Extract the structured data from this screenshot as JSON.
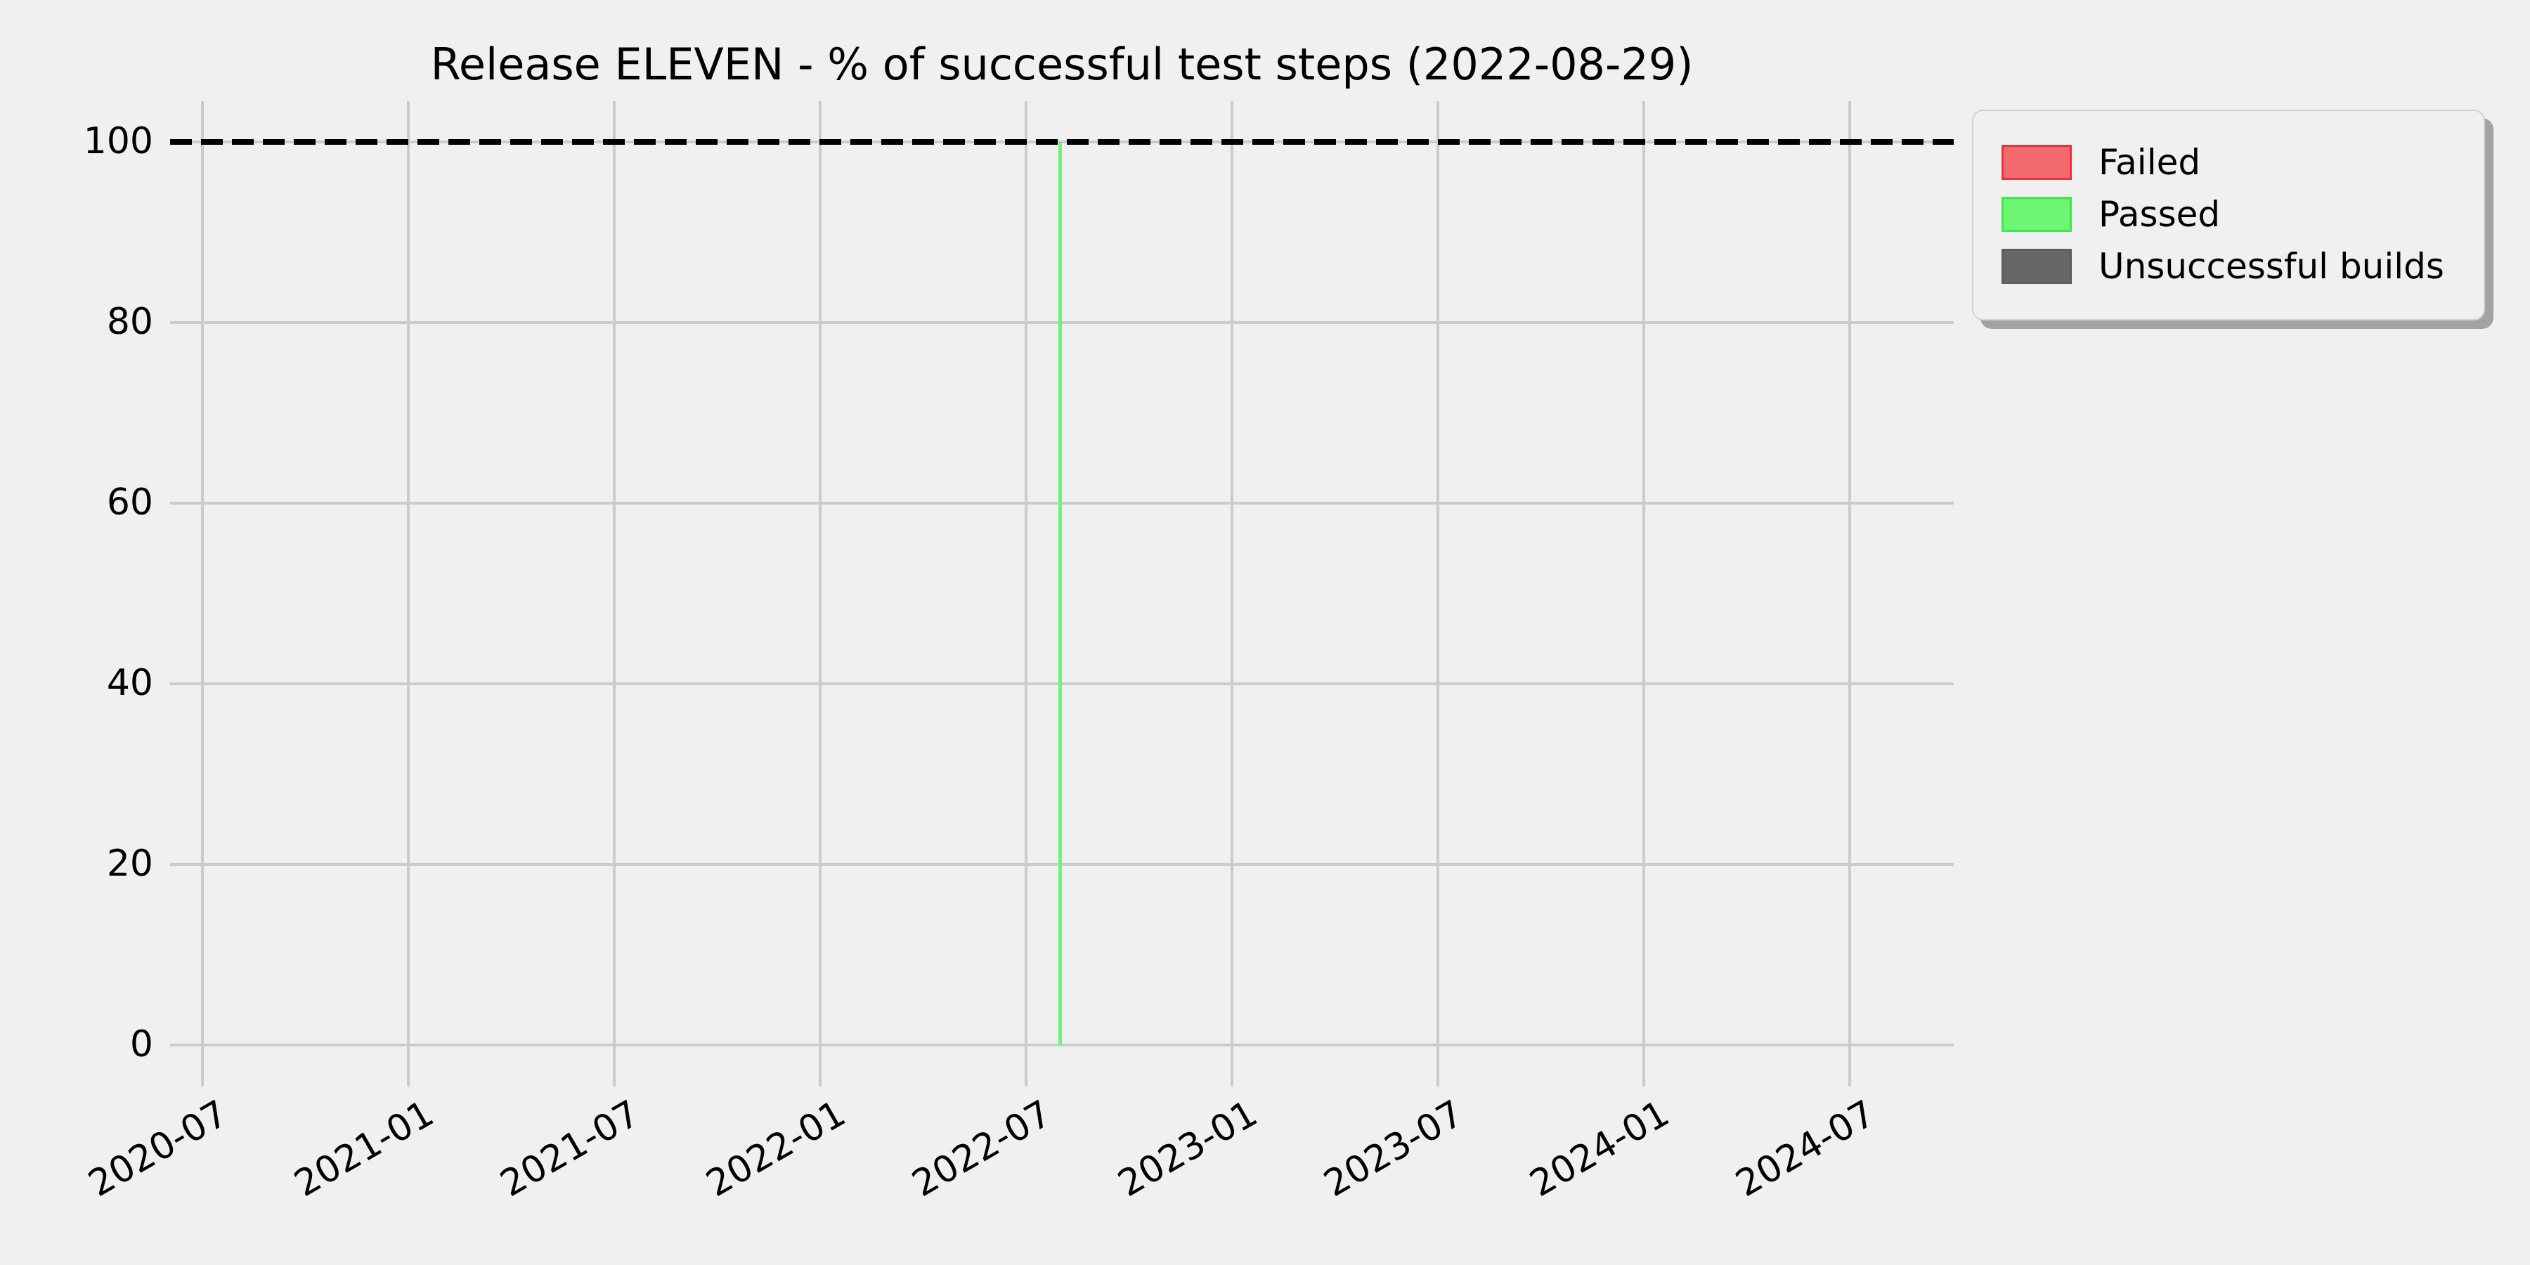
{
  "figure": {
    "background_color": "#f0f0f0",
    "grid_color": "#cbcbcb",
    "text_color": "#000000"
  },
  "chart_data": {
    "type": "bar",
    "title": "Release ELEVEN - % of successful test steps (2022-08-29)",
    "xlabel": "",
    "ylabel": "",
    "x_tick_labels": [
      "2020-07",
      "2021-01",
      "2021-07",
      "2022-01",
      "2022-07",
      "2023-01",
      "2023-07",
      "2024-01",
      "2024-07"
    ],
    "x_tick_rotation_deg": 30,
    "x_start_month": "2020-07",
    "months_per_tick": 6,
    "y_tick_labels": [
      "0",
      "20",
      "40",
      "60",
      "80",
      "100"
    ],
    "ylim": [
      -4.5,
      104.5
    ],
    "grid": true,
    "legend_position": "upper right, outside plot",
    "reference_line": {
      "value": 100,
      "style": "dashed",
      "color": "#000000"
    },
    "series": [
      {
        "name": "Failed",
        "fill_color": "#f4696e",
        "edge_color": "#f03038",
        "points": []
      },
      {
        "name": "Passed",
        "fill_color": "#6ef573",
        "edge_color": "#35ef45",
        "points": [
          {
            "x": "2022-08",
            "y": 100
          }
        ]
      },
      {
        "name": "Unsuccessful builds",
        "fill_color": "#676767",
        "edge_color": "#5e5e5e",
        "points": []
      }
    ]
  }
}
